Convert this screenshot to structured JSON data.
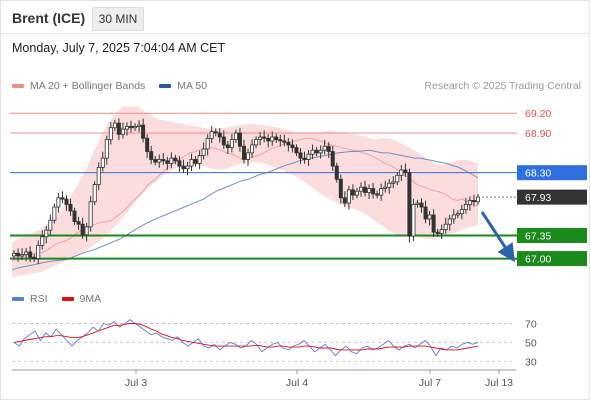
{
  "header": {
    "instrument": "Brent (ICE)",
    "timeframe": "30 MIN",
    "datetime": "Monday, July 7, 2025 7:04:04 AM CET"
  },
  "legend": {
    "bb_label": "MA 20 + Bollinger Bands",
    "ma50_label": "MA 50",
    "credit": "Research © 2025 Trading Central",
    "rsi_label": "RSI",
    "rsi_ma_label": "9MA"
  },
  "colors": {
    "resistance": "#f08c8c",
    "pivot": "#2f6fe0",
    "support": "#1a8a1a",
    "current": "#333333",
    "band_fill": "#fbd7d7",
    "ma20": "#f0a0a0",
    "ma50": "#6f8fc7",
    "rsi": "#5b7fd6",
    "rsi_ma": "#e01010",
    "arrow": "#2c63a8"
  },
  "chart_data": [
    {
      "type": "candlestick",
      "title": "Brent (ICE)",
      "timeframe": "30 MIN",
      "ylim": [
        66.6,
        69.4
      ],
      "x_ticks": [
        "Jul 3",
        "Jul 4",
        "Jul 7",
        "Jul 13"
      ],
      "levels": [
        {
          "value": 69.2,
          "label": "69.20",
          "kind": "resistance"
        },
        {
          "value": 68.9,
          "label": "68.90",
          "kind": "resistance"
        },
        {
          "value": 68.3,
          "label": "68.30",
          "kind": "pivot"
        },
        {
          "value": 67.93,
          "label": "67.93",
          "kind": "current"
        },
        {
          "value": 67.35,
          "label": "67.35",
          "kind": "support"
        },
        {
          "value": 67.0,
          "label": "67.00",
          "kind": "support"
        }
      ],
      "close_series": [
        67.08,
        67.04,
        67.06,
        67.1,
        67.02,
        67.0,
        67.2,
        67.33,
        67.43,
        67.58,
        67.78,
        67.92,
        67.9,
        67.82,
        67.72,
        67.56,
        67.52,
        67.36,
        67.48,
        67.86,
        68.12,
        68.38,
        68.52,
        68.8,
        68.98,
        69.05,
        68.88,
        68.96,
        69.0,
        68.98,
        69.0,
        69.02,
        68.82,
        68.62,
        68.5,
        68.46,
        68.5,
        68.48,
        68.44,
        68.52,
        68.48,
        68.4,
        68.36,
        68.4,
        68.5,
        68.44,
        68.56,
        68.66,
        68.82,
        68.92,
        68.9,
        68.84,
        68.72,
        68.68,
        68.8,
        68.9,
        68.7,
        68.5,
        68.6,
        68.72,
        68.8,
        68.84,
        68.82,
        68.78,
        68.84,
        68.8,
        68.78,
        68.76,
        68.72,
        68.68,
        68.6,
        68.52,
        68.5,
        68.58,
        68.64,
        68.6,
        68.64,
        68.7,
        68.62,
        68.4,
        68.2,
        67.92,
        67.84,
        68.04,
        67.96,
        68.02,
        68.08,
        68.0,
        68.06,
        67.98,
        67.96,
        68.06,
        68.08,
        68.14,
        68.16,
        68.26,
        68.34,
        68.3,
        67.34,
        67.82,
        67.84,
        67.78,
        67.6,
        67.66,
        67.4,
        67.38,
        67.44,
        67.52,
        67.6,
        67.66,
        67.68,
        67.74,
        67.82,
        67.88,
        67.86,
        67.93
      ],
      "ma20_series": [
        66.97,
        67.0,
        67.03,
        67.06,
        67.07,
        67.08,
        67.1,
        67.14,
        67.2,
        67.24,
        67.26,
        67.3,
        67.36,
        67.42,
        67.46,
        67.5,
        67.52,
        67.55,
        67.56,
        67.58,
        67.64,
        67.7,
        67.77,
        67.86,
        67.94,
        68.02,
        68.12,
        68.18,
        68.25,
        68.32,
        68.4,
        68.45,
        68.5,
        68.56,
        68.6,
        68.62,
        68.65,
        68.66,
        68.68,
        68.66,
        68.64,
        68.6,
        68.58,
        68.54,
        68.5,
        68.52,
        68.54,
        68.56,
        68.6,
        68.64,
        68.68,
        68.7,
        68.74,
        68.76,
        68.78,
        68.8,
        68.82,
        68.82,
        68.8,
        68.78,
        68.74,
        68.72,
        68.7,
        68.68,
        68.66,
        68.64,
        68.64,
        68.6,
        68.58,
        68.54,
        68.5,
        68.45,
        68.42,
        68.38,
        68.32,
        68.26,
        68.22,
        68.14,
        68.1,
        68.08,
        68.04,
        68.02,
        68.0,
        67.96,
        67.9,
        67.88,
        67.9,
        67.86,
        67.82,
        67.8
      ],
      "ma50_series": [
        66.83,
        66.86,
        66.88,
        66.9,
        66.92,
        66.94,
        66.96,
        66.97,
        66.98,
        67.0,
        67.04,
        67.08,
        67.11,
        67.14,
        67.18,
        67.22,
        67.26,
        67.3,
        67.36,
        67.42,
        67.48,
        67.53,
        67.58,
        67.62,
        67.66,
        67.7,
        67.74,
        67.78,
        67.82,
        67.86,
        67.9,
        67.96,
        68.02,
        68.06,
        68.1,
        68.14,
        68.18,
        68.2,
        68.24,
        68.28,
        68.3,
        68.34,
        68.38,
        68.42,
        68.44,
        68.48,
        68.5,
        68.52,
        68.54,
        68.56,
        68.58,
        68.6,
        68.61,
        68.62,
        68.62,
        68.63,
        68.64,
        68.62,
        68.6,
        68.6,
        68.58,
        68.56,
        68.54,
        68.52,
        68.52,
        68.5,
        68.48,
        68.46,
        68.44,
        68.41,
        68.38,
        68.33,
        68.28,
        68.22
      ],
      "upper_band_series": [
        67.25,
        67.3,
        67.35,
        67.4,
        67.45,
        67.55,
        67.65,
        67.8,
        67.95,
        68.15,
        68.35,
        68.6,
        68.85,
        69.05,
        69.2,
        69.3,
        69.3,
        69.3,
        69.22,
        69.15,
        69.1,
        69.08,
        69.06,
        69.04,
        69.02,
        69.0,
        68.98,
        68.96,
        68.97,
        68.98,
        69.0,
        69.02,
        69.04,
        69.03,
        69.02,
        69.0,
        68.98,
        68.95,
        68.92,
        68.9,
        68.9,
        68.9,
        68.92,
        68.94,
        68.92,
        68.9,
        68.88,
        68.86,
        68.84,
        68.8,
        68.82,
        68.82,
        68.78,
        68.72,
        68.66,
        68.6,
        68.52,
        68.45,
        68.4,
        68.44,
        68.48,
        68.5,
        68.48,
        68.44
      ],
      "lower_band_series": [
        66.72,
        66.74,
        66.76,
        66.78,
        66.8,
        66.85,
        66.9,
        66.95,
        67.0,
        67.05,
        67.12,
        67.2,
        67.28,
        67.38,
        67.5,
        67.62,
        67.76,
        67.9,
        68.02,
        68.12,
        68.22,
        68.3,
        68.36,
        68.4,
        68.42,
        68.42,
        68.4,
        68.36,
        68.34,
        68.36,
        68.4,
        68.44,
        68.46,
        68.46,
        68.44,
        68.4,
        68.36,
        68.32,
        68.26,
        68.2,
        68.12,
        68.04,
        67.96,
        67.9,
        67.84,
        67.8,
        67.76,
        67.72,
        67.66,
        67.58,
        67.5,
        67.42,
        67.36,
        67.34,
        67.32,
        67.32,
        67.3,
        67.3,
        67.32,
        67.36,
        67.4,
        67.44,
        67.48,
        67.5
      ],
      "forecast_target": 67.0
    },
    {
      "type": "line",
      "title": "RSI",
      "ylim": [
        25,
        80
      ],
      "y_ticks": [
        70,
        50,
        30
      ],
      "series": [
        {
          "name": "RSI",
          "values": [
            50,
            46,
            54,
            58,
            62,
            52,
            60,
            56,
            64,
            58,
            52,
            46,
            52,
            56,
            60,
            66,
            62,
            70,
            68,
            72,
            66,
            70,
            74,
            70,
            66,
            62,
            58,
            60,
            56,
            54,
            52,
            56,
            50,
            46,
            50,
            54,
            46,
            44,
            48,
            42,
            46,
            50,
            48,
            44,
            46,
            52,
            48,
            40,
            44,
            48,
            50,
            44,
            42,
            46,
            48,
            52,
            46,
            40,
            44,
            48,
            42,
            36,
            42,
            46,
            40,
            38,
            44,
            46,
            42,
            44,
            48,
            52,
            46,
            42,
            46,
            48,
            44,
            48,
            52,
            46,
            36,
            44,
            42,
            46,
            44,
            48,
            50,
            48,
            50
          ]
        },
        {
          "name": "9MA",
          "values": [
            50,
            51,
            52,
            53,
            54,
            55,
            56,
            56,
            57,
            57,
            56,
            55,
            55,
            56,
            58,
            60,
            62,
            64,
            66,
            68,
            68,
            69,
            70,
            70,
            69,
            67,
            64,
            62,
            59,
            57,
            55,
            54,
            52,
            51,
            50,
            49,
            48,
            47,
            46,
            46,
            46,
            46,
            46,
            46,
            46,
            46,
            47,
            46,
            45,
            45,
            46,
            46,
            45,
            45,
            45,
            46,
            46,
            45,
            44,
            44,
            44,
            43,
            42,
            42,
            42,
            42,
            42,
            43,
            43,
            43,
            44,
            45,
            45,
            45,
            45,
            46,
            46,
            46,
            46,
            45,
            44,
            43,
            42,
            42,
            42,
            43,
            44,
            45,
            46
          ]
        }
      ]
    }
  ]
}
